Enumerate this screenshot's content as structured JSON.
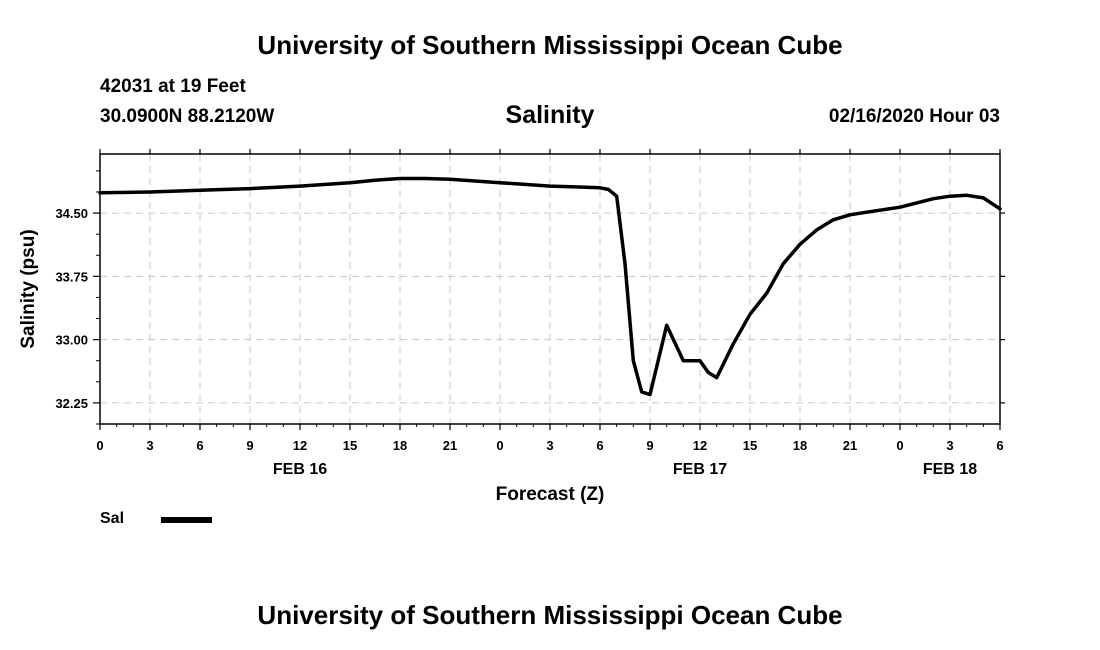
{
  "header": {
    "title": "University of Southern Mississippi Ocean Cube",
    "station": "42031 at 19 Feet",
    "coordinates": "30.0900N 88.2120W",
    "datetime": "02/16/2020 Hour 03"
  },
  "footer": {
    "title": "University of Southern Mississippi Ocean Cube"
  },
  "legend": {
    "label": "Sal",
    "color": "#000000"
  },
  "chart_data": {
    "type": "line",
    "title": "Salinity",
    "xlabel": "Forecast (Z)",
    "ylabel": "Salinity (psu)",
    "xlim": [
      0,
      54
    ],
    "ylim": [
      32.0,
      35.2
    ],
    "grid": true,
    "x_ticks": [
      0,
      3,
      6,
      9,
      12,
      15,
      18,
      21,
      24,
      27,
      30,
      33,
      36,
      39,
      42,
      45,
      48,
      51,
      54
    ],
    "x_tick_labels": [
      "0",
      "3",
      "6",
      "9",
      "12",
      "15",
      "18",
      "21",
      "0",
      "3",
      "6",
      "9",
      "12",
      "15",
      "18",
      "21",
      "0",
      "3",
      "6"
    ],
    "y_ticks": [
      32.25,
      33.0,
      33.75,
      34.5
    ],
    "y_tick_labels": [
      "32.25",
      "33.00",
      "33.75",
      "34.50"
    ],
    "day_labels": [
      {
        "x": 12,
        "label": "FEB 16"
      },
      {
        "x": 36,
        "label": "FEB 17"
      },
      {
        "x": 51,
        "label": "FEB 18"
      }
    ],
    "series": [
      {
        "name": "Sal",
        "color": "#000000",
        "x": [
          0,
          3,
          6,
          9,
          12,
          15,
          16.5,
          18,
          19.5,
          21,
          22.5,
          24,
          25.5,
          27,
          28.5,
          30,
          30.5,
          31,
          31.5,
          32,
          32.5,
          33,
          34,
          35,
          36,
          36.5,
          37,
          38,
          39,
          40,
          41,
          42,
          43,
          44,
          45,
          46,
          47,
          48,
          49,
          50,
          51,
          52,
          53,
          54
        ],
        "y": [
          34.74,
          34.75,
          34.77,
          34.79,
          34.82,
          34.86,
          34.89,
          34.91,
          34.91,
          34.9,
          34.88,
          34.86,
          34.84,
          34.82,
          34.81,
          34.8,
          34.78,
          34.7,
          33.9,
          32.75,
          32.38,
          32.35,
          33.17,
          32.75,
          32.75,
          32.61,
          32.55,
          32.95,
          33.3,
          33.55,
          33.9,
          34.13,
          34.3,
          34.42,
          34.48,
          34.51,
          34.54,
          34.57,
          34.62,
          34.67,
          34.7,
          34.71,
          34.68,
          34.55
        ]
      }
    ]
  }
}
